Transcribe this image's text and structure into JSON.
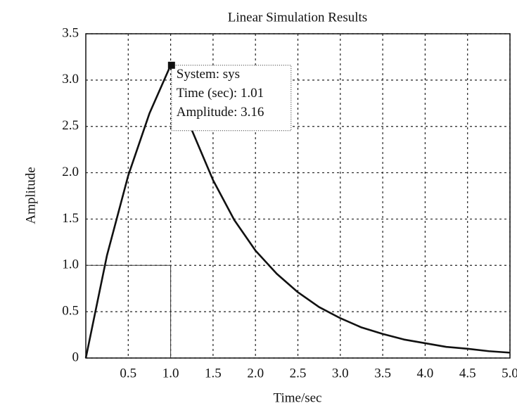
{
  "chart_data": {
    "type": "line",
    "title": "Linear Simulation Results",
    "x_label": "Time/sec",
    "y_label": "Amplitude",
    "xlim": [
      0,
      5
    ],
    "ylim": [
      0,
      3.5
    ],
    "xticks": [
      0.5,
      {
        "value": 1,
        "label": "1.0"
      },
      1.5,
      {
        "value": 2,
        "label": "2.0"
      },
      2.5,
      {
        "value": 3,
        "label": "3.0"
      },
      3.5,
      {
        "value": 4,
        "label": "4.0"
      },
      4.5,
      {
        "value": 5,
        "label": "5.0"
      }
    ],
    "yticks": [
      0,
      0.5,
      {
        "value": 1,
        "label": "1.0"
      },
      1.5,
      {
        "value": 2,
        "label": "2.0"
      },
      2.5,
      {
        "value": 3,
        "label": "3.0"
      },
      3.5
    ],
    "grid": true,
    "series": [
      {
        "color": "#111111",
        "width": 2.6,
        "x": [
          0,
          0.25,
          0.5,
          0.75,
          1.0,
          1.25,
          1.5,
          1.75,
          2.0,
          2.25,
          2.5,
          2.75,
          3.0,
          3.25,
          3.5,
          3.75,
          4.0,
          4.25,
          4.5,
          4.75,
          5.0
        ],
        "values": [
          0,
          1.11,
          1.97,
          2.64,
          3.16,
          2.46,
          1.92,
          1.49,
          1.16,
          0.91,
          0.71,
          0.55,
          0.43,
          0.33,
          0.26,
          0.2,
          0.16,
          0.12,
          0.1,
          0.074,
          0.058
        ]
      },
      {
        "color": "#333333",
        "width": 1,
        "x": [
          0,
          1,
          1
        ],
        "values": [
          1,
          1,
          0
        ]
      }
    ],
    "datatip": {
      "x": 1.01,
      "y": 3.16,
      "lines": [
        "System: sys",
        "Time (sec): 1.01",
        "Amplitude: 3.16"
      ]
    }
  }
}
